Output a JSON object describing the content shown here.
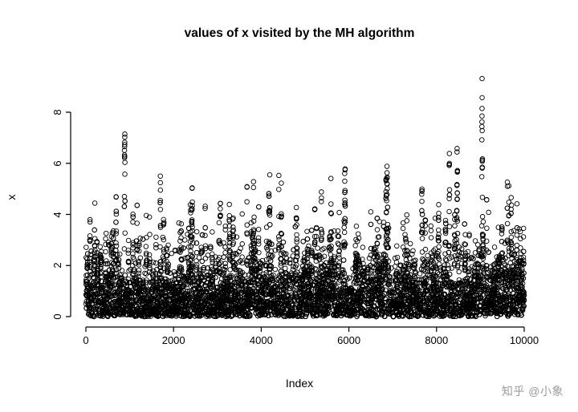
{
  "title": "values of x visited by the MH algorithm",
  "axes": {
    "xlabel": "Index",
    "ylabel": "x"
  },
  "watermark": "知乎 @小象",
  "colors": {
    "background": "#ffffff",
    "points": "#000000",
    "axis": "#000000",
    "watermark": "#9b9b9b"
  },
  "chart_data": {
    "type": "scatter",
    "title": "values of x visited by the MH algorithm",
    "xlabel": "Index",
    "ylabel": "x",
    "xlim": [
      0,
      10000
    ],
    "ylim": [
      0,
      9.5
    ],
    "x_ticks": [
      0,
      2000,
      4000,
      6000,
      8000,
      10000
    ],
    "y_ticks": [
      0,
      2,
      4,
      6,
      8
    ],
    "n_points": 10000,
    "marker": "open-circle",
    "point_color": "#000000",
    "grid": false,
    "legend": false,
    "series_description": "Metropolis-Hastings trace plot: 10000 iterations; bulk of samples between 0 and 2 (approximately Exp(1) stationary distribution), frequent excursions to 3-5, sporadic excursions to 6-7.3, maximum value approximately 9.3; dense solid band below y=2 across all indices",
    "generator": {
      "method": "metropolis-hastings-random-walk",
      "target": "exponential(rate=1)",
      "proposal": "uniform(-1.5,1.5)",
      "initial": 0.5,
      "seed": 987654321,
      "quantile_match": "empirical marginal matched to Exp(1) quantiles, max 9.32"
    }
  }
}
